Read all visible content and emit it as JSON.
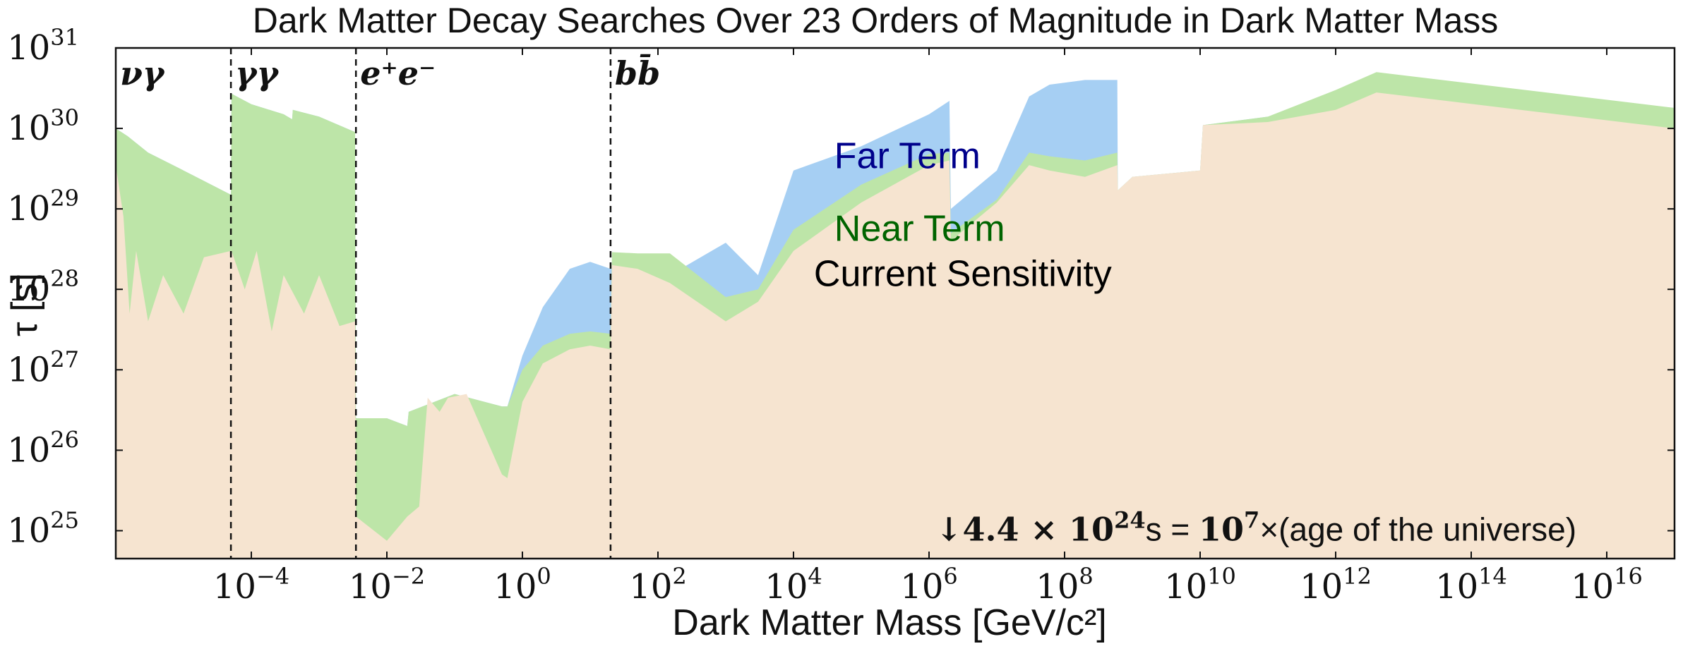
{
  "chart_data": {
    "type": "area",
    "title": "Dark Matter Decay Searches Over 23 Orders of Magnitude in Dark Matter Mass",
    "xlabel": "Dark Matter Mass [GeV/c²]",
    "ylabel": "τ [s]",
    "xscale": "log",
    "yscale": "log",
    "xlim": [
      1e-06,
      1e+17
    ],
    "ylim": [
      4.5e+24,
      1e+31
    ],
    "x_ticks": [
      {
        "base": "10",
        "exp": "−4",
        "value": 0.0001
      },
      {
        "base": "10",
        "exp": "−2",
        "value": 0.01
      },
      {
        "base": "10",
        "exp": "0",
        "value": 1.0
      },
      {
        "base": "10",
        "exp": "2",
        "value": 100.0
      },
      {
        "base": "10",
        "exp": "4",
        "value": 10000.0
      },
      {
        "base": "10",
        "exp": "6",
        "value": 1000000.0
      },
      {
        "base": "10",
        "exp": "8",
        "value": 100000000.0
      },
      {
        "base": "10",
        "exp": "10",
        "value": 10000000000.0
      },
      {
        "base": "10",
        "exp": "12",
        "value": 1000000000000.0
      },
      {
        "base": "10",
        "exp": "14",
        "value": 100000000000000.0
      },
      {
        "base": "10",
        "exp": "16",
        "value": 1e+16
      }
    ],
    "y_ticks": [
      {
        "base": "10",
        "exp": "25",
        "value": 1e+25
      },
      {
        "base": "10",
        "exp": "26",
        "value": 1e+26
      },
      {
        "base": "10",
        "exp": "27",
        "value": 1e+27
      },
      {
        "base": "10",
        "exp": "28",
        "value": 1e+28
      },
      {
        "base": "10",
        "exp": "29",
        "value": 1e+29
      },
      {
        "base": "10",
        "exp": "30",
        "value": 1e+30
      },
      {
        "base": "10",
        "exp": "31",
        "value": 1e+31
      }
    ],
    "channels": [
      {
        "label": "νγ",
        "x_start": 1e-06
      },
      {
        "label": "γγ",
        "x_start": 5e-05
      },
      {
        "label": "e⁺e⁻",
        "x_start": 0.0035
      },
      {
        "label": "bb̄",
        "x_start": 20
      }
    ],
    "channel_boundaries": [
      5e-05,
      0.0035,
      20
    ],
    "series": [
      {
        "name": "Far Term",
        "color": "#a6cff3",
        "points": [
          [
            1e-06,
            1e+30
          ],
          [
            1.5e-06,
            8e+29
          ],
          [
            3e-06,
            5e+29
          ],
          [
            1e-05,
            3e+29
          ],
          [
            5e-05,
            1.5e+29
          ],
          [
            5.1e-05,
            2.7e+30
          ],
          [
            0.0001,
            2e+30
          ],
          [
            0.0003,
            1.5e+30
          ],
          [
            0.0004,
            1.3e+30
          ],
          [
            0.00041,
            1.7e+30
          ],
          [
            0.001,
            1.4e+30
          ],
          [
            0.0034,
            9e+29
          ],
          [
            0.0035,
            2.5e+26
          ],
          [
            0.01,
            2.5e+26
          ],
          [
            0.02,
            2e+26
          ],
          [
            0.021,
            3e+26
          ],
          [
            0.1,
            5e+26
          ],
          [
            0.5,
            3.5e+26
          ],
          [
            0.6,
            3.5e+26
          ],
          [
            0.6,
            3.5e+26
          ],
          [
            1,
            1.5e+27
          ],
          [
            2,
            6e+27
          ],
          [
            5,
            1.8e+28
          ],
          [
            10,
            2.2e+28
          ],
          [
            20,
            1.8e+28
          ],
          [
            21,
            1.8e+28
          ],
          [
            50,
            1.9e+28
          ],
          [
            150,
            1.5e+28
          ],
          [
            1000,
            3.8e+28
          ],
          [
            3000,
            1.5e+28
          ],
          [
            10000,
            3e+29
          ],
          [
            100000.0,
            6e+29
          ],
          [
            1000000.0,
            1.5e+30
          ],
          [
            2000000.0,
            2.2e+30
          ],
          [
            2100000.0,
            1e+29
          ],
          [
            10000000.0,
            3e+29
          ],
          [
            30000000.0,
            2.5e+30
          ],
          [
            60000000.0,
            3.5e+30
          ],
          [
            200000000.0,
            4e+30
          ],
          [
            600000000.0,
            4e+30
          ],
          [
            610000000.0,
            1.7e+29
          ],
          [
            1000000000.0,
            2.5e+29
          ],
          [
            10000000000.0,
            3e+29
          ],
          [
            11000000000.0,
            1.1e+30
          ],
          [
            100000000000.0,
            1.4e+30
          ],
          [
            1000000000000.0,
            1.5e+30
          ],
          [
            4000000000000.0,
            3e+30
          ],
          [
            1e+17,
            1.8e+30
          ]
        ]
      },
      {
        "name": "Near Term",
        "color": "#bde5a8",
        "points": [
          [
            1e-06,
            1e+30
          ],
          [
            1.5e-06,
            8e+29
          ],
          [
            3e-06,
            5e+29
          ],
          [
            1e-05,
            3e+29
          ],
          [
            5e-05,
            1.5e+29
          ],
          [
            5.1e-05,
            2.7e+30
          ],
          [
            0.0001,
            2e+30
          ],
          [
            0.0003,
            1.5e+30
          ],
          [
            0.0004,
            1.3e+30
          ],
          [
            0.00041,
            1.7e+30
          ],
          [
            0.001,
            1.4e+30
          ],
          [
            0.0034,
            9e+29
          ],
          [
            0.0035,
            2.5e+26
          ],
          [
            0.01,
            2.5e+26
          ],
          [
            0.02,
            2e+26
          ],
          [
            0.021,
            3e+26
          ],
          [
            0.1,
            5e+26
          ],
          [
            0.5,
            3.5e+26
          ],
          [
            0.6,
            3.5e+26
          ],
          [
            1,
            1e+27
          ],
          [
            2,
            2e+27
          ],
          [
            5,
            2.8e+27
          ],
          [
            10,
            3e+27
          ],
          [
            20,
            2.8e+27
          ],
          [
            21,
            2.9e+28
          ],
          [
            50,
            2.8e+28
          ],
          [
            150,
            2.8e+28
          ],
          [
            1000,
            8e+27
          ],
          [
            3000,
            1e+28
          ],
          [
            10000,
            5.5e+28
          ],
          [
            100000.0,
            2e+29
          ],
          [
            1000000.0,
            4.8e+29
          ],
          [
            2000000.0,
            5e+29
          ],
          [
            2100000.0,
            5e+28
          ],
          [
            10000000.0,
            1.3e+29
          ],
          [
            30000000.0,
            5e+29
          ],
          [
            60000000.0,
            4.5e+29
          ],
          [
            200000000.0,
            4e+29
          ],
          [
            600000000.0,
            5e+29
          ],
          [
            610000000.0,
            1.7e+29
          ],
          [
            1000000000.0,
            2.5e+29
          ],
          [
            10000000000.0,
            3e+29
          ],
          [
            11000000000.0,
            1.1e+30
          ],
          [
            100000000000.0,
            1.4e+30
          ],
          [
            1000000000000.0,
            3e+30
          ],
          [
            4000000000000.0,
            5e+30
          ],
          [
            1e+17,
            1.8e+30
          ]
        ]
      },
      {
        "name": "Current Sensitivity",
        "color": "#f6e4d0",
        "points": [
          [
            1e-06,
            3.5e+29
          ],
          [
            1.3e-06,
            8e+28
          ],
          [
            1.6e-06,
            5e+27
          ],
          [
            2e-06,
            3e+28
          ],
          [
            3e-06,
            4e+27
          ],
          [
            5e-06,
            1.5e+28
          ],
          [
            1e-05,
            5e+27
          ],
          [
            2e-05,
            2.5e+28
          ],
          [
            5e-05,
            3e+28
          ],
          [
            5.1e-05,
            3e+28
          ],
          [
            8e-05,
            1e+28
          ],
          [
            0.00012,
            3e+28
          ],
          [
            0.0002,
            3e+27
          ],
          [
            0.0003,
            1.5e+28
          ],
          [
            0.0006,
            5e+27
          ],
          [
            0.001,
            1.5e+28
          ],
          [
            0.002,
            3.5e+27
          ],
          [
            0.0034,
            4e+27
          ],
          [
            0.0035,
            1.5e+25
          ],
          [
            0.01,
            7.5e+24
          ],
          [
            0.02,
            1.5e+25
          ],
          [
            0.03,
            2e+25
          ],
          [
            0.04,
            4.5e+26
          ],
          [
            0.06,
            3e+26
          ],
          [
            0.08,
            4.5e+26
          ],
          [
            0.15,
            5e+26
          ],
          [
            0.5,
            5e+25
          ],
          [
            0.6,
            4.5e+25
          ],
          [
            1,
            4e+26
          ],
          [
            2,
            1.2e+27
          ],
          [
            5,
            1.8e+27
          ],
          [
            10,
            2e+27
          ],
          [
            20,
            1.8e+27
          ],
          [
            21,
            2e+28
          ],
          [
            50,
            1.8e+28
          ],
          [
            150,
            1.2e+28
          ],
          [
            1000,
            4e+27
          ],
          [
            3000,
            7e+27
          ],
          [
            10000,
            3e+28
          ],
          [
            100000.0,
            1.2e+29
          ],
          [
            1000000.0,
            3.5e+29
          ],
          [
            2000000.0,
            4e+29
          ],
          [
            2100000.0,
            4e+28
          ],
          [
            10000000.0,
            1.2e+29
          ],
          [
            30000000.0,
            3.5e+29
          ],
          [
            60000000.0,
            3e+29
          ],
          [
            200000000.0,
            2.5e+29
          ],
          [
            600000000.0,
            3.5e+29
          ],
          [
            610000000.0,
            1.7e+29
          ],
          [
            1000000000.0,
            2.5e+29
          ],
          [
            10000000000.0,
            3e+29
          ],
          [
            11000000000.0,
            1.1e+30
          ],
          [
            100000000000.0,
            1.2e+30
          ],
          [
            1000000000000.0,
            1.7e+30
          ],
          [
            4000000000000.0,
            2.8e+30
          ],
          [
            1e+17,
            1e+30
          ]
        ]
      }
    ],
    "region_labels": [
      {
        "text": "Far Term",
        "color": "#00008b",
        "x": 40000.0,
        "y": 3.2e+29
      },
      {
        "text": "Near Term",
        "color": "#006400",
        "x": 40000.0,
        "y": 4e+28
      },
      {
        "text": "Current Sensitivity",
        "color": "#000000",
        "x": 20000.0,
        "y": 1.1e+28
      }
    ],
    "annotation": {
      "arrow": "↓",
      "math": "4.4 × 10",
      "math_exp": "24",
      "unit": "s = ",
      "math2": "10",
      "math2_exp": "7",
      "tail": "×(age of the universe)",
      "x": 2000000.0,
      "y": 1e+25
    }
  }
}
